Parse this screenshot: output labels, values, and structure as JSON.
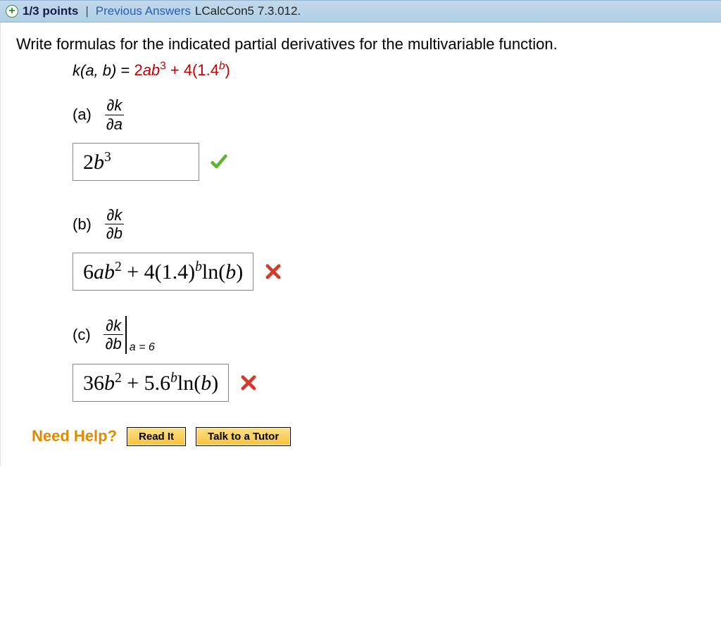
{
  "header": {
    "points": "1/3 points",
    "prev_answers": "Previous Answers",
    "question_id": "LCalcCon5 7.3.012."
  },
  "prompt": "Write formulas for the indicated partial derivatives for the multivariable function.",
  "function": {
    "lhs_var": "k(a, b)",
    "eq": " = ",
    "term1_coef": "2",
    "term1_var": "ab",
    "term1_exp": "3",
    "plus": " + ",
    "term2_coef": "4(1.4",
    "term2_exp": "b",
    "term2_close": ")"
  },
  "parts": {
    "a": {
      "label": "(a)",
      "deriv_top": "∂k",
      "deriv_bot": "∂a",
      "answer_coef": "2",
      "answer_var": "b",
      "answer_exp": "3",
      "status": "correct"
    },
    "b": {
      "label": "(b)",
      "deriv_top": "∂k",
      "deriv_bot": "∂b",
      "answer_html": "6<span class='mi'>ab</span><sup>2</sup> + 4(1.4)<sup><span class='mi'>b</span></sup>ln(<span class='mi'>b</span>)",
      "answer_plain": "6ab^2 + 4(1.4)^b ln(b)",
      "status": "incorrect"
    },
    "c": {
      "label": "(c)",
      "deriv_top": "∂k",
      "deriv_bot": "∂b",
      "eval_at": "a = 6",
      "answer_html": "36<span class='mi'>b</span><sup>2</sup> + 5.6<sup><span class='mi'>b</span></sup>ln(<span class='mi'>b</span>)",
      "answer_plain": "36b^2 + 5.6^b ln(b)",
      "status": "incorrect"
    }
  },
  "help": {
    "label": "Need Help?",
    "read_it": "Read It",
    "talk_tutor": "Talk to a Tutor"
  },
  "colors": {
    "header_bg_top": "#c4d9ea",
    "header_bg_bottom": "#aecfe6",
    "link": "#2a5db0",
    "red_text": "#c00000",
    "help_label": "#e08a00",
    "button_top": "#ffe087",
    "button_bottom": "#f8c23d",
    "correct": "#5fb336",
    "incorrect": "#d23a2e"
  }
}
